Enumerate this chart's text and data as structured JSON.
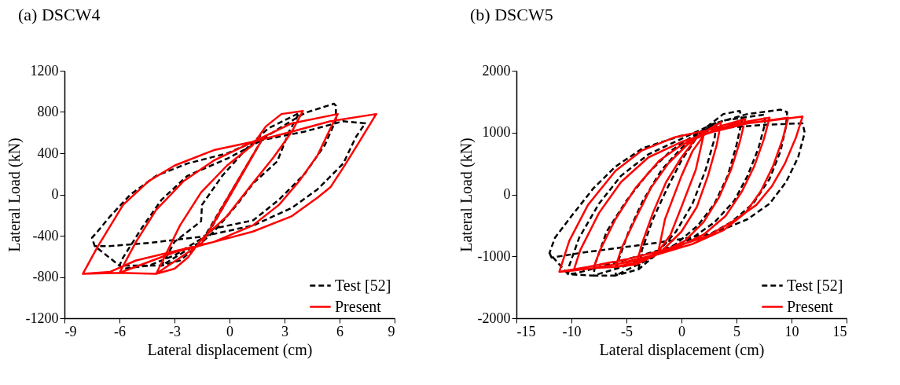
{
  "chart_data": [
    {
      "type": "line",
      "title": "(a) DSCW4",
      "xlabel": "Lateral displacement (cm)",
      "ylabel": "Lateral  Load (kN)",
      "xlim": [
        -9,
        9
      ],
      "xticks": [
        -9,
        -6,
        -3,
        0,
        3,
        6,
        9
      ],
      "ylim": [
        -1200,
        1200
      ],
      "yticks": [
        -1200,
        -800,
        -400,
        0,
        400,
        800,
        1200
      ],
      "legend": "bottom right",
      "series": [
        {
          "name": "Test [52]",
          "color": "#000000",
          "line_style": "dashed",
          "x": [
            -1.5,
            1.5,
            1.7,
            -1.3,
            -1.5,
            -3.7,
            -3,
            -1.55,
            -1.5,
            -0.4,
            1,
            2.1,
            3.8,
            3.25,
            2.6,
            1.3,
            0.4,
            -0.85,
            -1.8,
            -2.7,
            -3.7,
            -6,
            -5.8,
            -4.8,
            -3.7,
            -2.3,
            -0.1,
            1.3,
            2.7,
            4.1,
            5.7,
            5.8,
            5.8,
            5.2,
            4.1,
            2.7,
            1.3,
            -0.85,
            -1.55,
            -3,
            -4.4,
            -5.8,
            -6,
            -7.35,
            -7.5,
            -7.2,
            -6.5,
            -5.4,
            -4,
            -2.3,
            -0.1,
            1.3,
            4.1,
            6.2,
            7.4,
            6.9,
            6.2,
            4.8,
            3.4,
            1.3,
            -1.55,
            -4.4,
            -6.5,
            -7.35
          ],
          "values": [
            -450,
            450,
            510,
            -420,
            -450,
            -690,
            -460,
            -260,
            -100,
            180,
            460,
            640,
            790,
            610,
            320,
            110,
            -100,
            -360,
            -510,
            -640,
            -690,
            -690,
            -610,
            -330,
            -50,
            180,
            350,
            480,
            640,
            790,
            880,
            860,
            720,
            480,
            200,
            -50,
            -250,
            -330,
            -430,
            -590,
            -690,
            -720,
            -690,
            -500,
            -420,
            -360,
            -210,
            0,
            180,
            300,
            400,
            510,
            610,
            710,
            690,
            560,
            300,
            50,
            -130,
            -300,
            -410,
            -470,
            -500,
            -500
          ]
        },
        {
          "name": "Present",
          "color": "#ff0000",
          "line_style": "solid",
          "x": [
            -1.5,
            0,
            1.7,
            0.2,
            -1.5,
            -4,
            -3.5,
            -2.7,
            -1.55,
            -0.14,
            1.27,
            1.98,
            2.83,
            4,
            3.4,
            2.4,
            1.27,
            -0.14,
            -1.55,
            -2.26,
            -3,
            -4,
            -6,
            -5.1,
            -4,
            -2.5,
            -0.85,
            1.27,
            3.4,
            5.9,
            5.5,
            4.8,
            3.8,
            2.7,
            1.27,
            -0.85,
            -3,
            -6,
            -8,
            -7.2,
            -5.8,
            -4.4,
            -3,
            -0.85,
            1.27,
            3.4,
            5.5,
            8,
            6.9,
            6.2,
            5.5,
            4.8,
            3.4,
            1.27,
            -0.85,
            -3,
            -5.1,
            -6.5,
            -8
          ],
          "values": [
            -470,
            -20,
            510,
            60,
            -470,
            -770,
            -590,
            -300,
            20,
            280,
            480,
            660,
            780,
            810,
            610,
            360,
            110,
            -210,
            -440,
            -610,
            -720,
            -770,
            -760,
            -460,
            -150,
            130,
            330,
            510,
            690,
            780,
            640,
            380,
            130,
            -100,
            -300,
            -460,
            -560,
            -760,
            -770,
            -510,
            -100,
            130,
            280,
            430,
            510,
            610,
            710,
            780,
            460,
            260,
            70,
            -30,
            -210,
            -360,
            -460,
            -550,
            -640,
            -750,
            -770
          ]
        }
      ]
    },
    {
      "type": "line",
      "title": "(b) DSCW5",
      "xlabel": "Lateral displacement (cm)",
      "ylabel": "Lateral  Load (kN)",
      "xlim": [
        -15,
        15
      ],
      "xticks": [
        -15,
        -10,
        -5,
        0,
        5,
        10,
        15
      ],
      "ylim": [
        -2000,
        2000
      ],
      "yticks": [
        -2000,
        -1000,
        0,
        1000,
        2000
      ],
      "legend": "bottom right",
      "series": [
        {
          "name": "Test [52]",
          "color": "#000000",
          "line_style": "dashed",
          "x": [
            -3.9,
            -3.6,
            -2.6,
            -1.3,
            0,
            1.5,
            3.2,
            3,
            2.2,
            1,
            -0.5,
            -2.5,
            -3.9,
            -6,
            -5.8,
            -4.8,
            -3.5,
            -1.8,
            0,
            2,
            3.8,
            5.3,
            5.5,
            5,
            4.2,
            3,
            1.5,
            -0.5,
            -3,
            -6,
            -8,
            -7.8,
            -6.8,
            -5,
            -3,
            -1,
            1.5,
            4,
            7.5,
            7.6,
            7,
            6,
            4.8,
            3,
            1,
            -2,
            -5,
            -8,
            -10.3,
            -10.2,
            -9.3,
            -7.5,
            -5.5,
            -3,
            0,
            3,
            6,
            9,
            9.6,
            9.5,
            9,
            8,
            6.5,
            4.5,
            2,
            -1,
            -4,
            -7,
            -9.5,
            -10.3,
            -12,
            -11.5,
            -10,
            -8,
            -6,
            -3.5,
            0,
            4,
            8,
            11,
            11.2,
            10.6,
            9.5,
            8,
            6,
            3,
            0,
            -3,
            -6,
            -9,
            -11.8,
            -12
          ],
          "values": [
            -1210,
            -900,
            -400,
            100,
            550,
            950,
            1170,
            900,
            400,
            -150,
            -600,
            -1000,
            -1210,
            -1310,
            -1100,
            -600,
            -100,
            400,
            750,
            1050,
            1300,
            1350,
            1200,
            800,
            300,
            -150,
            -500,
            -800,
            -1050,
            -1310,
            -1310,
            -1100,
            -600,
            -100,
            350,
            700,
            1000,
            1200,
            1290,
            1150,
            750,
            300,
            -100,
            -450,
            -700,
            -950,
            -1150,
            -1310,
            -1290,
            -1150,
            -700,
            -150,
            300,
            650,
            900,
            1150,
            1300,
            1370,
            1330,
            1100,
            700,
            250,
            -150,
            -450,
            -700,
            -850,
            -1000,
            -1150,
            -1270,
            -1290,
            -950,
            -700,
            -350,
            100,
            450,
            750,
            950,
            1080,
            1130,
            1150,
            1000,
            600,
            200,
            -150,
            -400,
            -620,
            -720,
            -800,
            -870,
            -940,
            -1020,
            -950
          ]
        },
        {
          "name": "Present",
          "color": "#ff0000",
          "line_style": "solid",
          "x": [
            -2.1,
            -1.5,
            0,
            1,
            2,
            1.3,
            0,
            -1,
            -2.1,
            -4.1,
            -3.6,
            -2.6,
            -1.4,
            0,
            1.5,
            3.6,
            3.2,
            2.4,
            1.4,
            0,
            -2,
            -4.1,
            -6,
            -5.4,
            -4.2,
            -2.8,
            -1.2,
            0.5,
            2.5,
            5.8,
            5.3,
            4.5,
            3.4,
            2,
            0.3,
            -2,
            -4.2,
            -6,
            -8,
            -7.4,
            -6,
            -4.2,
            -2,
            0,
            2.5,
            5,
            8,
            7.5,
            6.6,
            5.5,
            4,
            2,
            0,
            -3,
            -6,
            -8,
            -9.8,
            -9.2,
            -7.5,
            -5.5,
            -3,
            0,
            3,
            6,
            9.7,
            9.2,
            8.3,
            7.2,
            5.8,
            3.8,
            1,
            -2,
            -5,
            -8,
            -9.8,
            -11.1,
            -10.2,
            -8.5,
            -6,
            -3.6,
            -0.7,
            2.4,
            6,
            11,
            10.4,
            9.4,
            8.2,
            6.8,
            4.8,
            2.4,
            -1.2,
            -4.8,
            -8.5,
            -11.1
          ],
          "values": [
            -920,
            -400,
            300,
            700,
            950,
            400,
            -200,
            -650,
            -920,
            -1130,
            -800,
            -300,
            200,
            600,
            950,
            1170,
            800,
            300,
            -200,
            -600,
            -950,
            -1130,
            -1170,
            -850,
            -400,
            100,
            500,
            800,
            1050,
            1220,
            850,
            400,
            -50,
            -450,
            -750,
            -950,
            -1100,
            -1170,
            -1190,
            -900,
            -400,
            100,
            550,
            800,
            1000,
            1150,
            1240,
            900,
            450,
            50,
            -350,
            -650,
            -820,
            -1000,
            -1130,
            -1190,
            -1230,
            -900,
            -300,
            200,
            600,
            850,
            1020,
            1150,
            1240,
            900,
            450,
            50,
            -300,
            -580,
            -800,
            -960,
            -1100,
            -1190,
            -1230,
            -1250,
            -750,
            -170,
            380,
            710,
            920,
            1040,
            1150,
            1260,
            920,
            500,
            130,
            -170,
            -420,
            -670,
            -880,
            -1040,
            -1170,
            -1250
          ]
        }
      ]
    }
  ]
}
